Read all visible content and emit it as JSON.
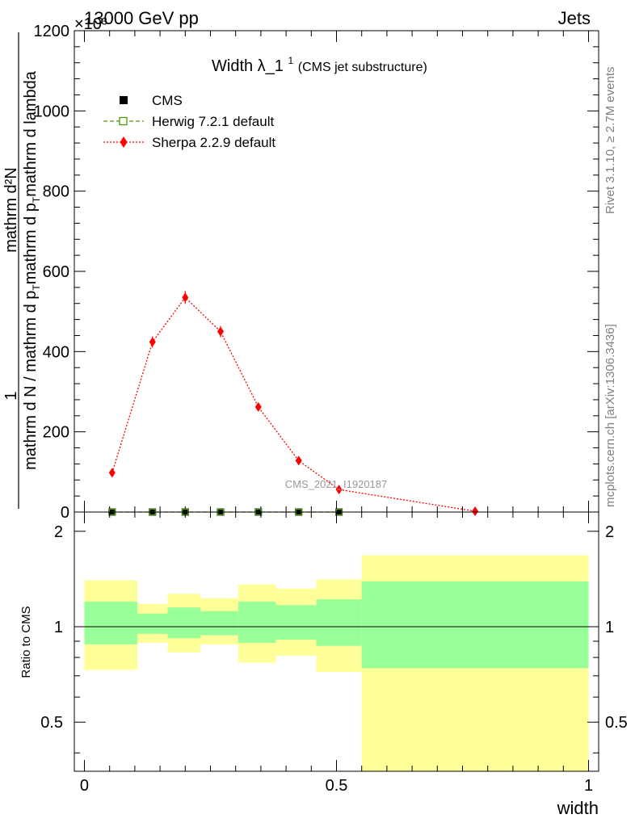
{
  "header": {
    "left": "13000 GeV pp",
    "right": "Jets"
  },
  "side_labels": {
    "rivet": "Rivet 3.1.10, ≥ 2.7M events",
    "mcplots": "mcplots.cern.ch [arXiv:1306.3436]"
  },
  "watermark": "CMS_2021_I1920187",
  "main_title": {
    "main": "Width λ_1",
    "sup": "1",
    "sub": " (CMS jet substructure)"
  },
  "ylabel_top": {
    "numer": "1",
    "denom": "mathrm d N / mathrm d p_T mathrm d p_T mathrm d lambda",
    "denom_parts": [
      "mathrm d N / mathrm d p",
      "T",
      "mathrm d p",
      "T",
      "mathrm d lambda"
    ],
    "numer2": "mathrm d²N"
  },
  "exponent_label": "×10³",
  "ratio_ylabel": "Ratio to CMS",
  "xlabel": "width",
  "colors": {
    "cms": "#000000",
    "herwig": "#4a9a0a",
    "sherpa": "#ff0000",
    "band_outer": "#ffff99",
    "band_inner": "#99ff99"
  },
  "chart_data": [
    {
      "type": "scatter",
      "panel": "main",
      "title": "Width λ_1^1 (CMS jet substructure)",
      "xlim": [
        -0.02,
        1.02
      ],
      "ylim": [
        0,
        1200
      ],
      "y_scale_factor": "10^3",
      "yticks": [
        0,
        200,
        400,
        600,
        800,
        1000,
        1200
      ],
      "xticks": [
        0,
        0.5,
        1
      ],
      "legend_position": "top-left",
      "series": [
        {
          "name": "CMS",
          "marker": "filled-square",
          "color": "#000000",
          "x": [
            0.055,
            0.135,
            0.2,
            0.27,
            0.345,
            0.425,
            0.505
          ],
          "y": [
            0,
            0,
            0,
            0,
            0,
            0,
            0
          ]
        },
        {
          "name": "Herwig 7.2.1 default",
          "marker": "open-square",
          "line": "dashed",
          "color": "#4a9a0a",
          "x": [
            0.055,
            0.135,
            0.2,
            0.27,
            0.345,
            0.425,
            0.505
          ],
          "y": [
            0,
            0,
            0,
            0,
            0,
            0,
            0
          ]
        },
        {
          "name": "Sherpa 2.2.9 default",
          "marker": "diamond",
          "line": "dotted",
          "color": "#ff0000",
          "x": [
            0.055,
            0.135,
            0.2,
            0.27,
            0.345,
            0.425,
            0.505,
            0.775
          ],
          "y": [
            98,
            424,
            535,
            450,
            262,
            128,
            56,
            2
          ],
          "err": [
            6,
            14,
            16,
            14,
            10,
            7,
            4,
            1
          ]
        }
      ]
    },
    {
      "type": "area",
      "panel": "ratio",
      "ylabel": "Ratio to CMS",
      "xlabel": "width",
      "xlim": [
        -0.02,
        1.02
      ],
      "ylim": [
        0.35,
        2.3
      ],
      "yticks": [
        0.5,
        1,
        2
      ],
      "xticks": [
        0,
        0.5,
        1
      ],
      "reference_line": 1,
      "bins": [
        {
          "x0": 0.0,
          "x1": 0.105,
          "outer": [
            0.73,
            1.4
          ],
          "inner": [
            0.88,
            1.2
          ]
        },
        {
          "x0": 0.105,
          "x1": 0.165,
          "outer": [
            0.89,
            1.18
          ],
          "inner": [
            0.95,
            1.1
          ]
        },
        {
          "x0": 0.165,
          "x1": 0.23,
          "outer": [
            0.83,
            1.27
          ],
          "inner": [
            0.92,
            1.15
          ]
        },
        {
          "x0": 0.23,
          "x1": 0.305,
          "outer": [
            0.88,
            1.23
          ],
          "inner": [
            0.94,
            1.12
          ]
        },
        {
          "x0": 0.305,
          "x1": 0.38,
          "outer": [
            0.77,
            1.36
          ],
          "inner": [
            0.89,
            1.2
          ]
        },
        {
          "x0": 0.38,
          "x1": 0.46,
          "outer": [
            0.81,
            1.32
          ],
          "inner": [
            0.91,
            1.17
          ]
        },
        {
          "x0": 0.46,
          "x1": 0.55,
          "outer": [
            0.72,
            1.41
          ],
          "inner": [
            0.87,
            1.22
          ]
        },
        {
          "x0": 0.55,
          "x1": 1.0,
          "outer": [
            0.35,
            1.68
          ],
          "inner": [
            0.74,
            1.39
          ]
        }
      ]
    }
  ]
}
